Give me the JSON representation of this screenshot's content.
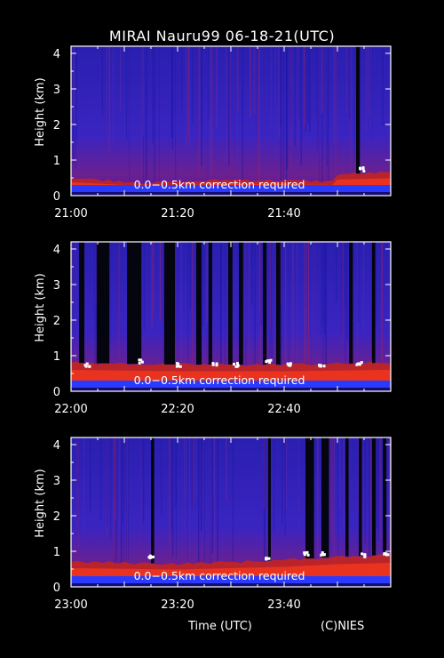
{
  "title": "MIRAI Nauru99 06-18-21(UTC)",
  "xlabel": "Time (UTC)",
  "credit": "(C)NIES",
  "colors": {
    "background": "#000000",
    "frame": "#ffffff",
    "signal_low": "#2a22c8",
    "signal_high": "#ff2a10",
    "saturation": "#ffffff"
  },
  "chart_data": [
    {
      "type": "heatmap",
      "ylabel": "Height (km)",
      "yticks": [
        0,
        1,
        2,
        3,
        4
      ],
      "ylim": [
        0,
        4.2
      ],
      "xlim_minutes": [
        0,
        60
      ],
      "xticks": [
        {
          "label": "21:00",
          "min": 0
        },
        {
          "label": "21:20",
          "min": 20
        },
        {
          "label": "21:40",
          "min": 40
        }
      ],
      "annotation": "0.0−0.5km correction required",
      "boundary_layer_top_km": [
        {
          "min": 0,
          "km": 0.5
        },
        {
          "min": 15,
          "km": 0.35
        },
        {
          "min": 30,
          "km": 0.45
        },
        {
          "min": 49,
          "km": 0.4
        },
        {
          "min": 50,
          "km": 0.6
        },
        {
          "min": 60,
          "km": 0.65
        }
      ],
      "strong_echoes": [
        {
          "min": 54.5,
          "km": 0.75
        }
      ],
      "blocked_columns_min": [
        [
          53.5,
          54.2
        ]
      ]
    },
    {
      "type": "heatmap",
      "ylabel": "Height (km)",
      "yticks": [
        0,
        1,
        2,
        3,
        4
      ],
      "ylim": [
        0,
        4.2
      ],
      "xlim_minutes": [
        0,
        60
      ],
      "xticks": [
        {
          "label": "22:00",
          "min": 0
        },
        {
          "label": "22:20",
          "min": 20
        },
        {
          "label": "22:40",
          "min": 40
        }
      ],
      "annotation": "0.0−0.5km correction required",
      "boundary_layer_top_km": [
        {
          "min": 0,
          "km": 0.8
        },
        {
          "min": 20,
          "km": 0.75
        },
        {
          "min": 40,
          "km": 0.75
        },
        {
          "min": 60,
          "km": 0.8
        }
      ],
      "strong_echoes": [
        {
          "min": 3,
          "km": 0.75
        },
        {
          "min": 13,
          "km": 0.85
        },
        {
          "min": 20,
          "km": 0.75
        },
        {
          "min": 27,
          "km": 0.75
        },
        {
          "min": 31,
          "km": 0.75
        },
        {
          "min": 37,
          "km": 0.85
        },
        {
          "min": 41,
          "km": 0.75
        },
        {
          "min": 47,
          "km": 0.75
        },
        {
          "min": 54,
          "km": 0.8
        }
      ],
      "blocked_columns_min": [
        [
          1.5,
          2.5
        ],
        [
          4.8,
          7.2
        ],
        [
          10.5,
          13.2
        ],
        [
          17.5,
          19.5
        ],
        [
          23.5,
          24.5
        ],
        [
          25.8,
          26.5
        ],
        [
          29.5,
          30.3
        ],
        [
          31.5,
          32.3
        ],
        [
          36.0,
          36.7
        ],
        [
          38.5,
          39.3
        ],
        [
          52.2,
          52.9
        ],
        [
          56.5,
          57.1
        ]
      ]
    },
    {
      "type": "heatmap",
      "ylabel": "Height (km)",
      "yticks": [
        0,
        1,
        2,
        3,
        4
      ],
      "ylim": [
        0,
        4.2
      ],
      "xlim_minutes": [
        0,
        60
      ],
      "xticks": [
        {
          "label": "23:00",
          "min": 0
        },
        {
          "label": "23:20",
          "min": 20
        },
        {
          "label": "23:40",
          "min": 40
        }
      ],
      "annotation": "0.0−0.5km correction required",
      "boundary_layer_top_km": [
        {
          "min": 0,
          "km": 0.7
        },
        {
          "min": 20,
          "km": 0.65
        },
        {
          "min": 40,
          "km": 0.75
        },
        {
          "min": 50,
          "km": 0.85
        },
        {
          "min": 60,
          "km": 0.9
        }
      ],
      "strong_echoes": [
        {
          "min": 15,
          "km": 0.85
        },
        {
          "min": 37,
          "km": 0.8
        },
        {
          "min": 44,
          "km": 0.95
        },
        {
          "min": 47,
          "km": 0.95
        },
        {
          "min": 55,
          "km": 0.9
        },
        {
          "min": 59,
          "km": 0.95
        }
      ],
      "blocked_columns_min": [
        [
          15.0,
          15.6
        ],
        [
          37.0,
          37.5
        ],
        [
          44.0,
          45.6
        ],
        [
          47.0,
          48.4
        ],
        [
          51.5,
          52.1
        ],
        [
          54.0,
          54.6
        ],
        [
          56.5,
          57.2
        ],
        [
          58.5,
          59.2
        ]
      ]
    }
  ]
}
